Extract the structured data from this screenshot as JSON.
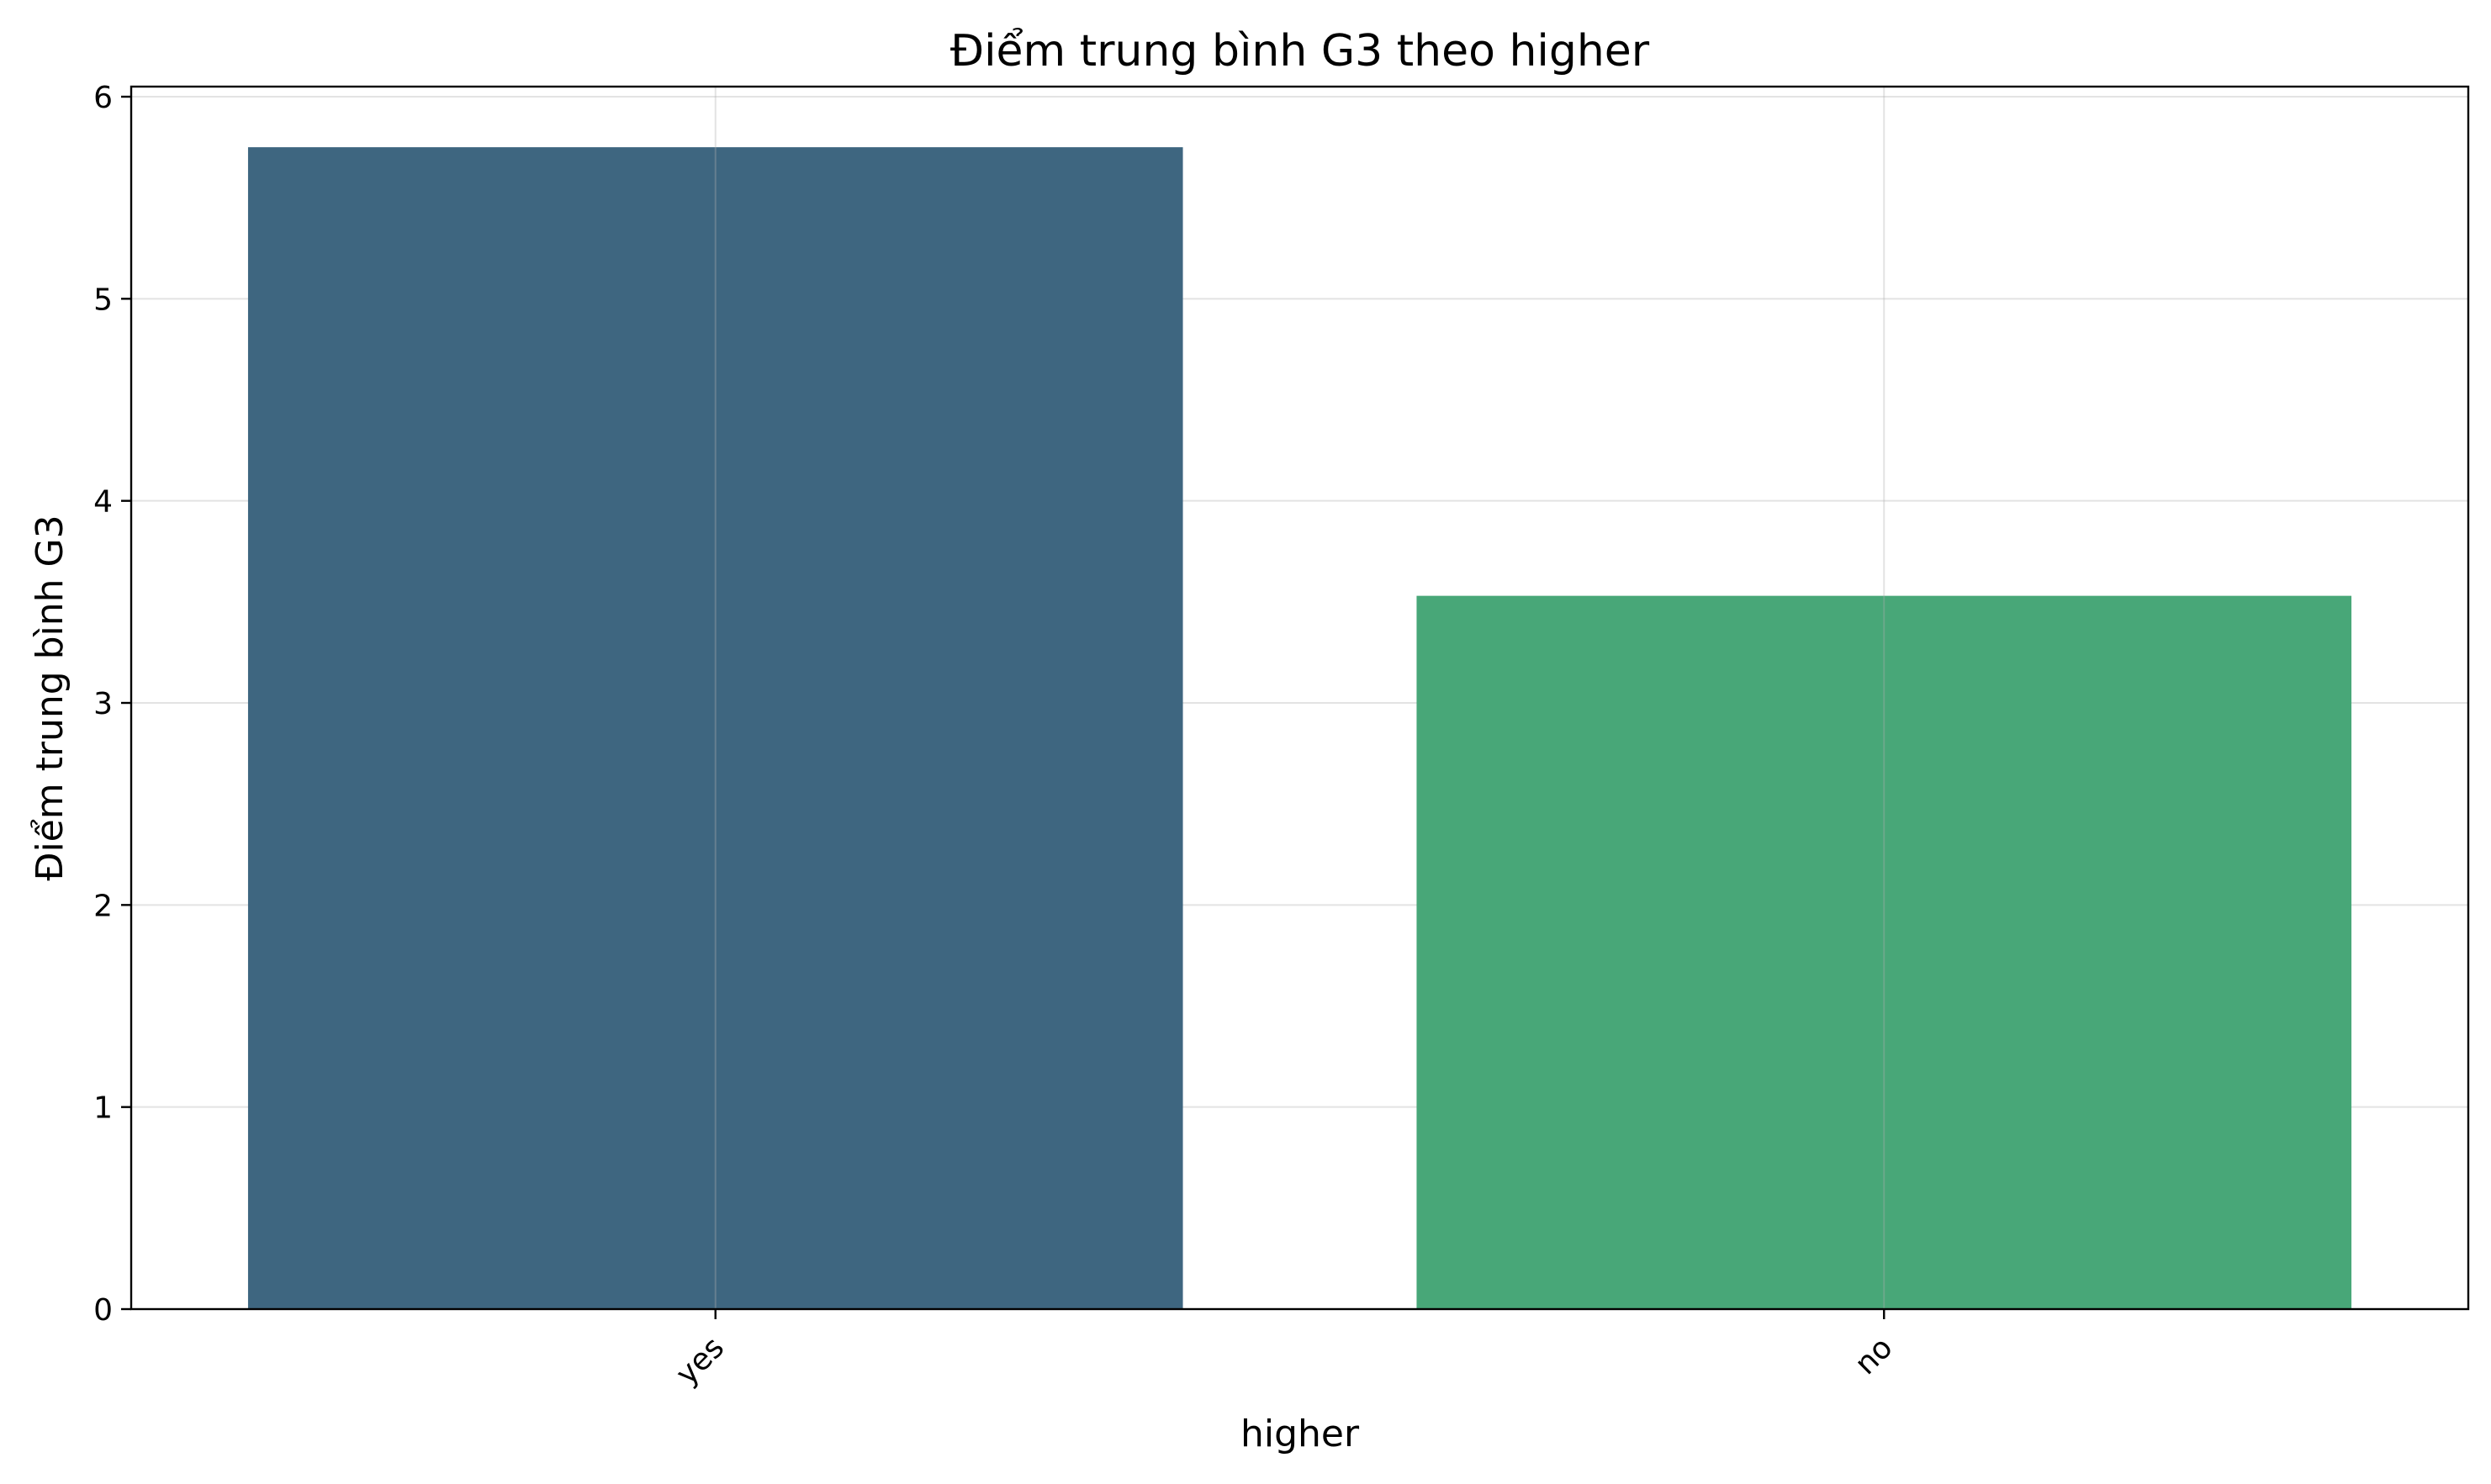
{
  "chart_data": {
    "type": "bar",
    "title": "Điểm trung bình G3 theo higher",
    "xlabel": "higher",
    "ylabel": "Điểm trung bình G3",
    "categories": [
      "yes",
      "no"
    ],
    "values": [
      5.75,
      3.53
    ],
    "colors": [
      "#3e6680",
      "#48a778"
    ],
    "ylim": [
      0,
      6.05
    ],
    "yticks": [
      0,
      1,
      2,
      3,
      4,
      5,
      6
    ],
    "grid": true,
    "legend": "none"
  }
}
